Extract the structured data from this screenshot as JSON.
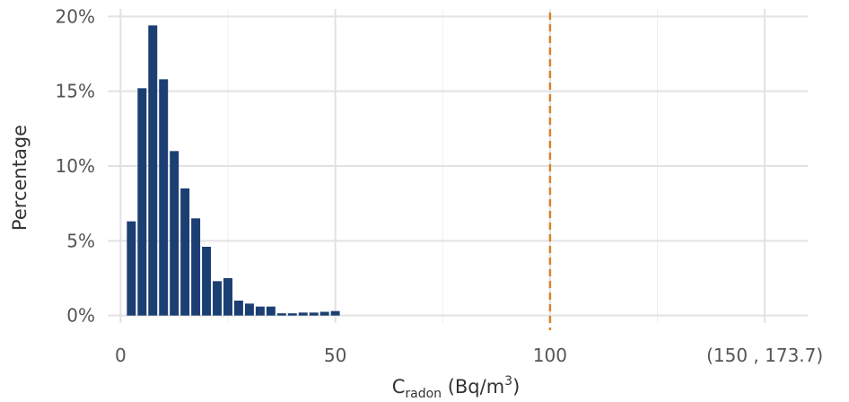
{
  "chart_data": {
    "type": "bar",
    "title": "",
    "xlabel": {
      "main": "C",
      "subscript": "radon",
      "unit": " (Bq/m",
      "superscript": "3",
      "close": ")"
    },
    "ylabel": "Percentage",
    "xlim": [
      -3,
      160
    ],
    "ylim": [
      -0.5,
      20.5
    ],
    "grid": true,
    "bin_width": 2.5,
    "bars": [
      {
        "x": 2.5,
        "value": 6.3
      },
      {
        "x": 5.0,
        "value": 15.2
      },
      {
        "x": 7.5,
        "value": 19.4
      },
      {
        "x": 10.0,
        "value": 15.8
      },
      {
        "x": 12.5,
        "value": 11.0
      },
      {
        "x": 15.0,
        "value": 8.5
      },
      {
        "x": 17.5,
        "value": 6.5
      },
      {
        "x": 20.0,
        "value": 4.6
      },
      {
        "x": 22.5,
        "value": 2.3
      },
      {
        "x": 25.0,
        "value": 2.5
      },
      {
        "x": 27.5,
        "value": 1.0
      },
      {
        "x": 30.0,
        "value": 0.8
      },
      {
        "x": 32.5,
        "value": 0.6
      },
      {
        "x": 35.0,
        "value": 0.6
      },
      {
        "x": 37.5,
        "value": 0.15
      },
      {
        "x": 40.0,
        "value": 0.15
      },
      {
        "x": 42.5,
        "value": 0.2
      },
      {
        "x": 45.0,
        "value": 0.2
      },
      {
        "x": 47.5,
        "value": 0.25
      },
      {
        "x": 50.0,
        "value": 0.3
      }
    ],
    "x_ticks": [
      {
        "value": 0,
        "label": "0"
      },
      {
        "value": 50,
        "label": "50"
      },
      {
        "value": 100,
        "label": "100"
      },
      {
        "value": 150,
        "label": "(150 , 173.7)"
      }
    ],
    "y_ticks": [
      {
        "value": 0,
        "label": "0%"
      },
      {
        "value": 5,
        "label": "5%"
      },
      {
        "value": 10,
        "label": "10%"
      },
      {
        "value": 15,
        "label": "15%"
      },
      {
        "value": 20,
        "label": "20%"
      }
    ],
    "minor_x_grid": [
      25,
      75,
      125
    ],
    "reference_line": {
      "x": 100,
      "style": "dashed"
    },
    "colors": {
      "bar": "#1b3f72",
      "reference_line": "#d9822b",
      "grid_major": "#e2e2e2",
      "grid_minor": "#efefef"
    }
  }
}
